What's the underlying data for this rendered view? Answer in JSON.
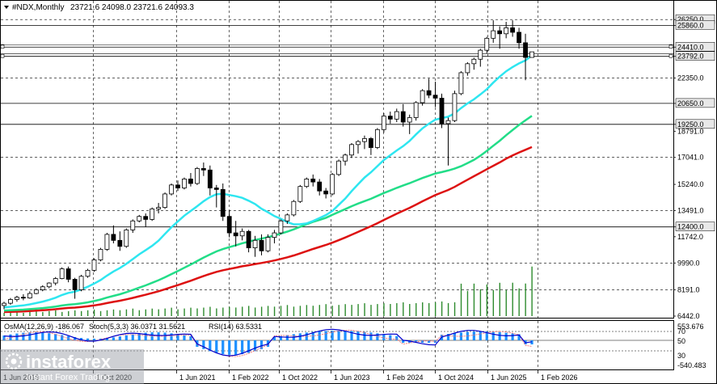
{
  "header": {
    "symbol": "#NDX,Monthly",
    "ohlc": "23721.6 24098.0 23721.6 24093.3"
  },
  "price_axis": {
    "labels": [
      "26250.0",
      "25860.0",
      "24410.0",
      "23792.0",
      "22350.0",
      "20650.0",
      "19250.0",
      "18791.0",
      "17041.0",
      "15240.0",
      "13491.0",
      "12400.0",
      "11742.0",
      "9990.0",
      "8191.0",
      "6442.0"
    ]
  },
  "indicator": {
    "osma_label": "OsMA(12,26,9) -186.067",
    "stoch_label": "Stoch(5,3,3) 36.0371 31.5621",
    "rsi_label": "RSI(14) 63.5331",
    "axis_labels": [
      "553.676",
      "70",
      "50",
      "30",
      "-540.483"
    ]
  },
  "time_axis": {
    "labels": [
      "1 Jun 2019",
      "1 Oct 2020",
      "1 Jun 2021",
      "1 Feb 2022",
      "1 Oct 2022",
      "1 Jun 2023",
      "1 Feb 2024",
      "1 Oct 2024",
      "1 Jun 2025",
      "1 Feb 2026"
    ]
  },
  "watermark": {
    "brand": "instaforex",
    "tagline": "Instant Forex Trading"
  },
  "colors": {
    "background": "#ffffff",
    "candle_up": "#ffffff",
    "candle_down": "#000000",
    "ma_fast": "#2ee6f0",
    "ma_mid": "#22dd88",
    "ma_slow": "#dd1111",
    "volume": "#2e8b2e",
    "osma_hist": "#1e90ff",
    "stoch_main": "#0000cc",
    "stoch_signal": "#ff6666",
    "grid": "#000000"
  },
  "chart_data": {
    "type": "line",
    "title": "#NDX,Monthly",
    "ohlc_last": {
      "open": 23721.6,
      "high": 24098.0,
      "low": 23721.6,
      "close": 24093.3
    },
    "ylim": [
      6442.0,
      26800.0
    ],
    "x_ticks": [
      "1 Jun 2019",
      "1 Oct 2020",
      "1 Jun 2021",
      "1 Feb 2022",
      "1 Oct 2022",
      "1 Jun 2023",
      "1 Feb 2024",
      "1 Oct 2024",
      "1 Jun 2025",
      "1 Feb 2026"
    ],
    "y_ticks": [
      26250.0,
      25860.0,
      24410.0,
      23792.0,
      22350.0,
      20650.0,
      19250.0,
      18791.0,
      17041.0,
      15240.0,
      13491.0,
      12400.0,
      11742.0,
      9990.0,
      8191.0,
      6442.0
    ],
    "horizontal_levels": [
      25860.0,
      24410.0,
      23792.0,
      20650.0,
      19250.0,
      12400.0
    ],
    "candles": [
      {
        "o": 7150,
        "h": 7400,
        "l": 6900,
        "c": 7300
      },
      {
        "o": 7300,
        "h": 7650,
        "l": 7200,
        "c": 7550
      },
      {
        "o": 7550,
        "h": 7800,
        "l": 7400,
        "c": 7700
      },
      {
        "o": 7700,
        "h": 7900,
        "l": 7500,
        "c": 7650
      },
      {
        "o": 7650,
        "h": 8100,
        "l": 7600,
        "c": 7950
      },
      {
        "o": 7950,
        "h": 8300,
        "l": 7900,
        "c": 8200
      },
      {
        "o": 8200,
        "h": 8500,
        "l": 8100,
        "c": 8400
      },
      {
        "o": 8400,
        "h": 8700,
        "l": 8300,
        "c": 8650
      },
      {
        "o": 8650,
        "h": 9050,
        "l": 8500,
        "c": 8950
      },
      {
        "o": 8950,
        "h": 9700,
        "l": 8900,
        "c": 9600
      },
      {
        "o": 9600,
        "h": 9750,
        "l": 8700,
        "c": 8900
      },
      {
        "o": 8900,
        "h": 9000,
        "l": 7600,
        "c": 8200
      },
      {
        "o": 8200,
        "h": 9200,
        "l": 8100,
        "c": 9100
      },
      {
        "o": 9100,
        "h": 9600,
        "l": 9000,
        "c": 9500
      },
      {
        "o": 9500,
        "h": 10300,
        "l": 9400,
        "c": 10200
      },
      {
        "o": 10200,
        "h": 11000,
        "l": 10100,
        "c": 10900
      },
      {
        "o": 10900,
        "h": 12000,
        "l": 10800,
        "c": 11900
      },
      {
        "o": 11900,
        "h": 12500,
        "l": 11300,
        "c": 11500
      },
      {
        "o": 11500,
        "h": 12100,
        "l": 10800,
        "c": 11100
      },
      {
        "o": 11100,
        "h": 12300,
        "l": 11000,
        "c": 12200
      },
      {
        "o": 12200,
        "h": 12900,
        "l": 12000,
        "c": 12800
      },
      {
        "o": 12800,
        "h": 13200,
        "l": 12700,
        "c": 13100
      },
      {
        "o": 13100,
        "h": 13300,
        "l": 12400,
        "c": 12900
      },
      {
        "o": 12900,
        "h": 13700,
        "l": 12800,
        "c": 13600
      },
      {
        "o": 13600,
        "h": 14000,
        "l": 13300,
        "c": 13700
      },
      {
        "o": 13700,
        "h": 14700,
        "l": 13600,
        "c": 14600
      },
      {
        "o": 14600,
        "h": 15300,
        "l": 14500,
        "c": 15200
      },
      {
        "o": 15200,
        "h": 15500,
        "l": 14800,
        "c": 15000
      },
      {
        "o": 15000,
        "h": 15700,
        "l": 14900,
        "c": 15600
      },
      {
        "o": 15600,
        "h": 16000,
        "l": 15100,
        "c": 15300
      },
      {
        "o": 15300,
        "h": 16400,
        "l": 15200,
        "c": 16300
      },
      {
        "o": 16300,
        "h": 16700,
        "l": 15800,
        "c": 16200
      },
      {
        "o": 16200,
        "h": 16500,
        "l": 14500,
        "c": 15000
      },
      {
        "o": 15000,
        "h": 15200,
        "l": 13700,
        "c": 14900
      },
      {
        "o": 14900,
        "h": 15300,
        "l": 12800,
        "c": 13100
      },
      {
        "o": 13100,
        "h": 13500,
        "l": 11700,
        "c": 12000
      },
      {
        "o": 12000,
        "h": 12800,
        "l": 11100,
        "c": 11800
      },
      {
        "o": 11800,
        "h": 12300,
        "l": 11500,
        "c": 12100
      },
      {
        "o": 12100,
        "h": 12200,
        "l": 10700,
        "c": 11000
      },
      {
        "o": 11000,
        "h": 11800,
        "l": 10400,
        "c": 11500
      },
      {
        "o": 11500,
        "h": 11900,
        "l": 10500,
        "c": 10800
      },
      {
        "o": 10800,
        "h": 11900,
        "l": 10700,
        "c": 11700
      },
      {
        "o": 11700,
        "h": 12200,
        "l": 11300,
        "c": 12000
      },
      {
        "o": 12000,
        "h": 12900,
        "l": 11900,
        "c": 12800
      },
      {
        "o": 12800,
        "h": 13300,
        "l": 12600,
        "c": 13200
      },
      {
        "o": 13200,
        "h": 14200,
        "l": 13100,
        "c": 14100
      },
      {
        "o": 14100,
        "h": 15200,
        "l": 14000,
        "c": 15100
      },
      {
        "o": 15100,
        "h": 15700,
        "l": 15000,
        "c": 15600
      },
      {
        "o": 15600,
        "h": 15900,
        "l": 15100,
        "c": 15400
      },
      {
        "o": 15400,
        "h": 15600,
        "l": 14500,
        "c": 14800
      },
      {
        "o": 14800,
        "h": 15000,
        "l": 14300,
        "c": 14600
      },
      {
        "o": 14600,
        "h": 16000,
        "l": 14500,
        "c": 15900
      },
      {
        "o": 15900,
        "h": 16900,
        "l": 15800,
        "c": 16800
      },
      {
        "o": 16800,
        "h": 17300,
        "l": 16500,
        "c": 17200
      },
      {
        "o": 17200,
        "h": 18000,
        "l": 17000,
        "c": 17900
      },
      {
        "o": 17900,
        "h": 18200,
        "l": 17300,
        "c": 18100
      },
      {
        "o": 18100,
        "h": 18500,
        "l": 17600,
        "c": 18300
      },
      {
        "o": 18300,
        "h": 18400,
        "l": 17200,
        "c": 17700
      },
      {
        "o": 17700,
        "h": 19000,
        "l": 17600,
        "c": 18900
      },
      {
        "o": 18900,
        "h": 20000,
        "l": 18700,
        "c": 19800
      },
      {
        "o": 19800,
        "h": 20100,
        "l": 19300,
        "c": 19600
      },
      {
        "o": 19600,
        "h": 20300,
        "l": 19400,
        "c": 20100
      },
      {
        "o": 20100,
        "h": 20600,
        "l": 19100,
        "c": 19400
      },
      {
        "o": 19400,
        "h": 19900,
        "l": 18600,
        "c": 19700
      },
      {
        "o": 19700,
        "h": 20800,
        "l": 19500,
        "c": 20700
      },
      {
        "o": 20700,
        "h": 21600,
        "l": 20500,
        "c": 21500
      },
      {
        "o": 21500,
        "h": 22300,
        "l": 21000,
        "c": 21200
      },
      {
        "o": 21200,
        "h": 22100,
        "l": 20400,
        "c": 21000
      },
      {
        "o": 21000,
        "h": 21300,
        "l": 19000,
        "c": 19300
      },
      {
        "o": 19300,
        "h": 19700,
        "l": 16500,
        "c": 19500
      },
      {
        "o": 19500,
        "h": 21500,
        "l": 19400,
        "c": 21300
      },
      {
        "o": 21300,
        "h": 22800,
        "l": 21200,
        "c": 22700
      },
      {
        "o": 22700,
        "h": 23400,
        "l": 22500,
        "c": 23300
      },
      {
        "o": 23300,
        "h": 23700,
        "l": 22900,
        "c": 23600
      },
      {
        "o": 23600,
        "h": 24300,
        "l": 23100,
        "c": 24200
      },
      {
        "o": 24200,
        "h": 25100,
        "l": 24000,
        "c": 25000
      },
      {
        "o": 25000,
        "h": 26200,
        "l": 24700,
        "c": 25500
      },
      {
        "o": 25500,
        "h": 25800,
        "l": 24300,
        "c": 25300
      },
      {
        "o": 25300,
        "h": 26100,
        "l": 25000,
        "c": 25700
      },
      {
        "o": 25700,
        "h": 26200,
        "l": 25100,
        "c": 25400
      },
      {
        "o": 25400,
        "h": 25700,
        "l": 24300,
        "c": 24700
      },
      {
        "o": 24700,
        "h": 25300,
        "l": 22200,
        "c": 23721.6
      },
      {
        "o": 23721.6,
        "h": 24098.0,
        "l": 23721.6,
        "c": 24093.3
      }
    ]
  }
}
